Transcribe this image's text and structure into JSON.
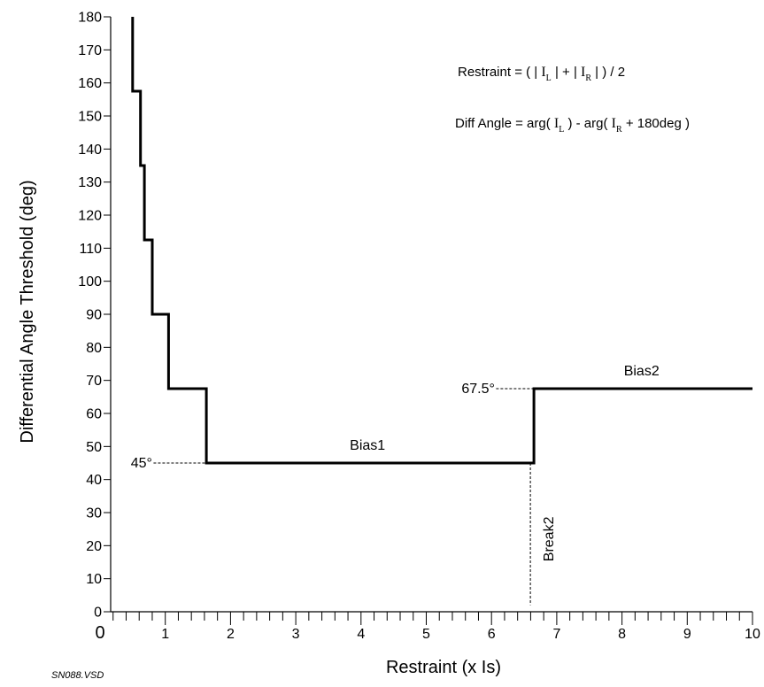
{
  "chart_data": {
    "type": "line",
    "xlabel": "Restraint (x Is)",
    "ylabel": "Differential Angle Threshold (deg)",
    "xlim": [
      0,
      10
    ],
    "ylim": [
      0,
      180
    ],
    "x_ticks": [
      0,
      1,
      2,
      3,
      4,
      5,
      6,
      7,
      8,
      9,
      10
    ],
    "y_ticks": [
      0,
      10,
      20,
      30,
      40,
      50,
      60,
      70,
      80,
      90,
      100,
      110,
      120,
      130,
      140,
      150,
      160,
      170,
      180
    ],
    "grid": false,
    "series": [
      {
        "points": [
          [
            0.5,
            180
          ],
          [
            0.5,
            157.5
          ],
          [
            0.62,
            157.5
          ],
          [
            0.62,
            135
          ],
          [
            0.68,
            135
          ],
          [
            0.68,
            112.5
          ],
          [
            0.8,
            112.5
          ],
          [
            0.8,
            90
          ],
          [
            1.05,
            90
          ],
          [
            1.05,
            67.5
          ],
          [
            1.63,
            67.5
          ],
          [
            1.63,
            45
          ],
          [
            6.65,
            45
          ],
          [
            6.65,
            67.5
          ],
          [
            10,
            67.5
          ]
        ]
      }
    ],
    "annotations": {
      "label_45": "45°",
      "label_67": "67.5°",
      "bias1": "Bias1",
      "bias2": "Bias2",
      "break2": "Break2"
    },
    "formulas": {
      "restraint_prefix": "Restraint = ( | ",
      "restraint_mid": " | + | ",
      "restraint_suffix": " | ) / 2",
      "angle_prefix": "Diff Angle = arg( ",
      "angle_mid": " ) - arg( ",
      "angle_suffix": " + 180deg )",
      "current_symbol": "I",
      "sub_L": "L",
      "sub_R": "R"
    },
    "file_label": "SN088.VSD"
  }
}
